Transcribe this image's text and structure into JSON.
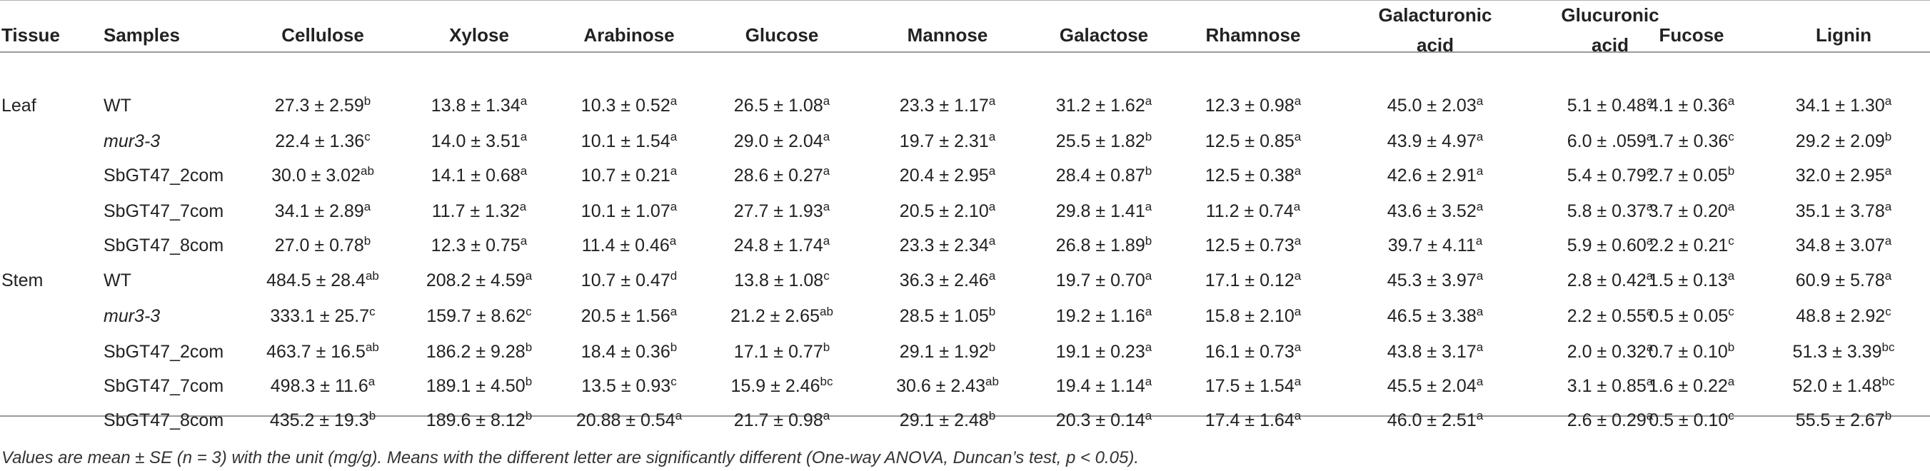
{
  "columns": [
    "Tissue",
    "Samples",
    "Cellulose",
    "Xylose",
    "Arabinose",
    "Glucose",
    "Mannose",
    "Galactose",
    "Rhamnose",
    "Galacturonic\nacid",
    "Glucuronic\nacid",
    "Fucose",
    "Lignin"
  ],
  "rows": [
    {
      "tissue": "Leaf",
      "sample": "WT",
      "italic": false,
      "cells": [
        {
          "v": "27.3 ± 2.59",
          "s": "b"
        },
        {
          "v": "13.8 ± 1.34",
          "s": "a"
        },
        {
          "v": "10.3 ± 0.52",
          "s": "a"
        },
        {
          "v": "26.5 ± 1.08",
          "s": "a"
        },
        {
          "v": "23.3 ± 1.17",
          "s": "a"
        },
        {
          "v": "31.2 ± 1.62",
          "s": "a"
        },
        {
          "v": "12.3 ± 0.98",
          "s": "a"
        },
        {
          "v": "45.0 ± 2.03",
          "s": "a"
        },
        {
          "v": "5.1 ± 0.48",
          "s": "a"
        },
        {
          "v": "4.1 ± 0.36",
          "s": "a"
        },
        {
          "v": "34.1 ± 1.30",
          "s": "a"
        }
      ]
    },
    {
      "tissue": "",
      "sample": "mur3-3",
      "italic": true,
      "cells": [
        {
          "v": "22.4 ± 1.36",
          "s": "c"
        },
        {
          "v": "14.0 ± 3.51",
          "s": "a"
        },
        {
          "v": "10.1 ± 1.54",
          "s": "a"
        },
        {
          "v": "29.0 ± 2.04",
          "s": "a"
        },
        {
          "v": "19.7 ± 2.31",
          "s": "a"
        },
        {
          "v": "25.5 ± 1.82",
          "s": "b"
        },
        {
          "v": "12.5 ± 0.85",
          "s": "a"
        },
        {
          "v": "43.9 ± 4.97",
          "s": "a"
        },
        {
          "v": "6.0 ± .059",
          "s": "a"
        },
        {
          "v": "1.7 ± 0.36",
          "s": "c"
        },
        {
          "v": "29.2 ± 2.09",
          "s": "b"
        }
      ]
    },
    {
      "tissue": "",
      "sample": "SbGT47_2com",
      "italic": false,
      "cells": [
        {
          "v": "30.0 ± 3.02",
          "s": "ab"
        },
        {
          "v": "14.1 ± 0.68",
          "s": "a"
        },
        {
          "v": "10.7 ± 0.21",
          "s": "a"
        },
        {
          "v": "28.6 ± 0.27",
          "s": "a"
        },
        {
          "v": "20.4 ± 2.95",
          "s": "a"
        },
        {
          "v": "28.4 ± 0.87",
          "s": "b"
        },
        {
          "v": "12.5 ± 0.38",
          "s": "a"
        },
        {
          "v": "42.6 ± 2.91",
          "s": "a"
        },
        {
          "v": "5.4 ± 0.79",
          "s": "a"
        },
        {
          "v": "2.7 ± 0.05",
          "s": "b"
        },
        {
          "v": "32.0 ± 2.95",
          "s": "a"
        }
      ]
    },
    {
      "tissue": "",
      "sample": "SbGT47_7com",
      "italic": false,
      "cells": [
        {
          "v": "34.1 ± 2.89",
          "s": "a"
        },
        {
          "v": "11.7 ± 1.32",
          "s": "a"
        },
        {
          "v": "10.1 ± 1.07",
          "s": "a"
        },
        {
          "v": "27.7 ± 1.93",
          "s": "a"
        },
        {
          "v": "20.5 ± 2.10",
          "s": "a"
        },
        {
          "v": "29.8 ± 1.41",
          "s": "a"
        },
        {
          "v": "11.2 ± 0.74",
          "s": "a"
        },
        {
          "v": "43.6 ± 3.52",
          "s": "a"
        },
        {
          "v": "5.8 ± 0.37",
          "s": "a"
        },
        {
          "v": "3.7 ± 0.20",
          "s": "a"
        },
        {
          "v": "35.1 ± 3.78",
          "s": "a"
        }
      ]
    },
    {
      "tissue": "",
      "sample": "SbGT47_8com",
      "italic": false,
      "cells": [
        {
          "v": "27.0 ± 0.78",
          "s": "b"
        },
        {
          "v": "12.3 ± 0.75",
          "s": "a"
        },
        {
          "v": "11.4 ± 0.46",
          "s": "a"
        },
        {
          "v": "24.8 ± 1.74",
          "s": "a"
        },
        {
          "v": "23.3 ± 2.34",
          "s": "a"
        },
        {
          "v": "26.8 ± 1.89",
          "s": "b"
        },
        {
          "v": "12.5 ± 0.73",
          "s": "a"
        },
        {
          "v": "39.7 ± 4.11",
          "s": "a"
        },
        {
          "v": "5.9 ± 0.60",
          "s": "a"
        },
        {
          "v": "2.2 ± 0.21",
          "s": "c"
        },
        {
          "v": "34.8 ± 3.07",
          "s": "a"
        }
      ]
    },
    {
      "tissue": "Stem",
      "sample": "WT",
      "italic": false,
      "cells": [
        {
          "v": "484.5 ± 28.4",
          "s": "ab"
        },
        {
          "v": "208.2 ± 4.59",
          "s": "a"
        },
        {
          "v": "10.7 ± 0.47",
          "s": "d"
        },
        {
          "v": "13.8 ± 1.08",
          "s": "c"
        },
        {
          "v": "36.3 ± 2.46",
          "s": "a"
        },
        {
          "v": "19.7 ± 0.70",
          "s": "a"
        },
        {
          "v": "17.1 ± 0.12",
          "s": "a"
        },
        {
          "v": "45.3 ± 3.97",
          "s": "a"
        },
        {
          "v": "2.8 ± 0.42",
          "s": "a"
        },
        {
          "v": "1.5 ± 0.13",
          "s": "a"
        },
        {
          "v": "60.9 ± 5.78",
          "s": "a"
        }
      ]
    },
    {
      "tissue": "",
      "sample": "mur3-3",
      "italic": true,
      "cells": [
        {
          "v": "333.1 ± 25.7",
          "s": "c"
        },
        {
          "v": "159.7 ± 8.62",
          "s": "c"
        },
        {
          "v": "20.5 ± 1.56",
          "s": "a"
        },
        {
          "v": "21.2 ± 2.65",
          "s": "ab"
        },
        {
          "v": "28.5 ± 1.05",
          "s": "b"
        },
        {
          "v": "19.2 ± 1.16",
          "s": "a"
        },
        {
          "v": "15.8 ± 2.10",
          "s": "a"
        },
        {
          "v": "46.5 ± 3.38",
          "s": "a"
        },
        {
          "v": "2.2 ± 0.55",
          "s": "a"
        },
        {
          "v": "0.5 ± 0.05",
          "s": "c"
        },
        {
          "v": "48.8 ± 2.92",
          "s": "c"
        }
      ]
    },
    {
      "tissue": "",
      "sample": "SbGT47_2com",
      "italic": false,
      "cells": [
        {
          "v": "463.7 ± 16.5",
          "s": "ab"
        },
        {
          "v": "186.2 ± 9.28",
          "s": "b"
        },
        {
          "v": "18.4 ± 0.36",
          "s": "b"
        },
        {
          "v": "17.1 ± 0.77",
          "s": "b"
        },
        {
          "v": "29.1 ± 1.92",
          "s": "b"
        },
        {
          "v": "19.1 ± 0.23",
          "s": "a"
        },
        {
          "v": "16.1 ± 0.73",
          "s": "a"
        },
        {
          "v": "43.8 ± 3.17",
          "s": "a"
        },
        {
          "v": "2.0 ± 0.32",
          "s": "a"
        },
        {
          "v": "0.7 ± 0.10",
          "s": "b"
        },
        {
          "v": "51.3 ± 3.39",
          "s": "bc"
        }
      ]
    },
    {
      "tissue": "",
      "sample": "SbGT47_7com",
      "italic": false,
      "cells": [
        {
          "v": "498.3 ± 11.6",
          "s": "a"
        },
        {
          "v": "189.1 ± 4.50",
          "s": "b"
        },
        {
          "v": "13.5 ± 0.93",
          "s": "c"
        },
        {
          "v": "15.9 ± 2.46",
          "s": "bc"
        },
        {
          "v": "30.6 ± 2.43",
          "s": "ab"
        },
        {
          "v": "19.4 ± 1.14",
          "s": "a"
        },
        {
          "v": "17.5 ± 1.54",
          "s": "a"
        },
        {
          "v": "45.5 ± 2.04",
          "s": "a"
        },
        {
          "v": "3.1 ± 0.85",
          "s": "a"
        },
        {
          "v": "1.6 ± 0.22",
          "s": "a"
        },
        {
          "v": "52.0 ± 1.48",
          "s": "bc"
        }
      ]
    },
    {
      "tissue": "",
      "sample": "SbGT47_8com",
      "italic": false,
      "cells": [
        {
          "v": "435.2 ± 19.3",
          "s": "b"
        },
        {
          "v": "189.6 ± 8.12",
          "s": "b"
        },
        {
          "v": "20.88 ± 0.54",
          "s": "a"
        },
        {
          "v": "21.7 ± 0.98",
          "s": "a"
        },
        {
          "v": "29.1 ± 2.48",
          "s": "b"
        },
        {
          "v": "20.3 ± 0.14",
          "s": "a"
        },
        {
          "v": "17.4 ± 1.64",
          "s": "a"
        },
        {
          "v": "46.0 ± 2.51",
          "s": "a"
        },
        {
          "v": "2.6 ± 0.29",
          "s": "a"
        },
        {
          "v": "0.5 ± 0.10",
          "s": "c"
        },
        {
          "v": "55.5 ± 2.67",
          "s": "b"
        }
      ]
    }
  ],
  "footnote": "Values are mean ± SE (n = 3) with the unit (mg/g). Means with the different letter are significantly different (One-way ANOVA, Duncan’s test, p < 0.05)."
}
